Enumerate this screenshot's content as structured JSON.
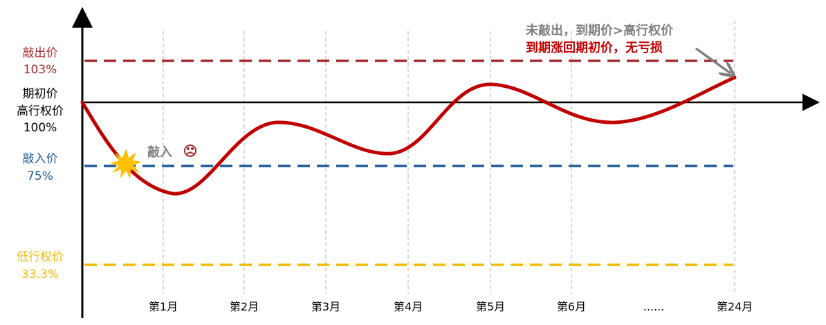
{
  "levels": {
    "knock_out": {
      "label": "敲出价",
      "value": "103%",
      "color": "#a52a2a"
    },
    "initial": {
      "label1": "期初价",
      "label2": "高行权价",
      "value": "100%",
      "color": "#000000"
    },
    "knock_in": {
      "label": "敲入价",
      "value": "75%",
      "color": "#1f5a96"
    },
    "low_strike": {
      "label": "低行权价",
      "value": "33.3%",
      "color": "#f2bb00"
    }
  },
  "x_ticks": [
    "第1月",
    "第2月",
    "第3月",
    "第4月",
    "第5月",
    "第6月",
    "......",
    "第24月"
  ],
  "knock_in_event": {
    "label": "敲入",
    "icon": "sad-face-icon",
    "marker": "starburst-icon"
  },
  "annotation": {
    "line1": "未敲出，到期价>高行权价",
    "line2": "到期涨回期初价，无亏损",
    "line1_color": "#7f7f7f",
    "line2_color": "#c00000"
  },
  "price_path_color": "#c00000"
}
